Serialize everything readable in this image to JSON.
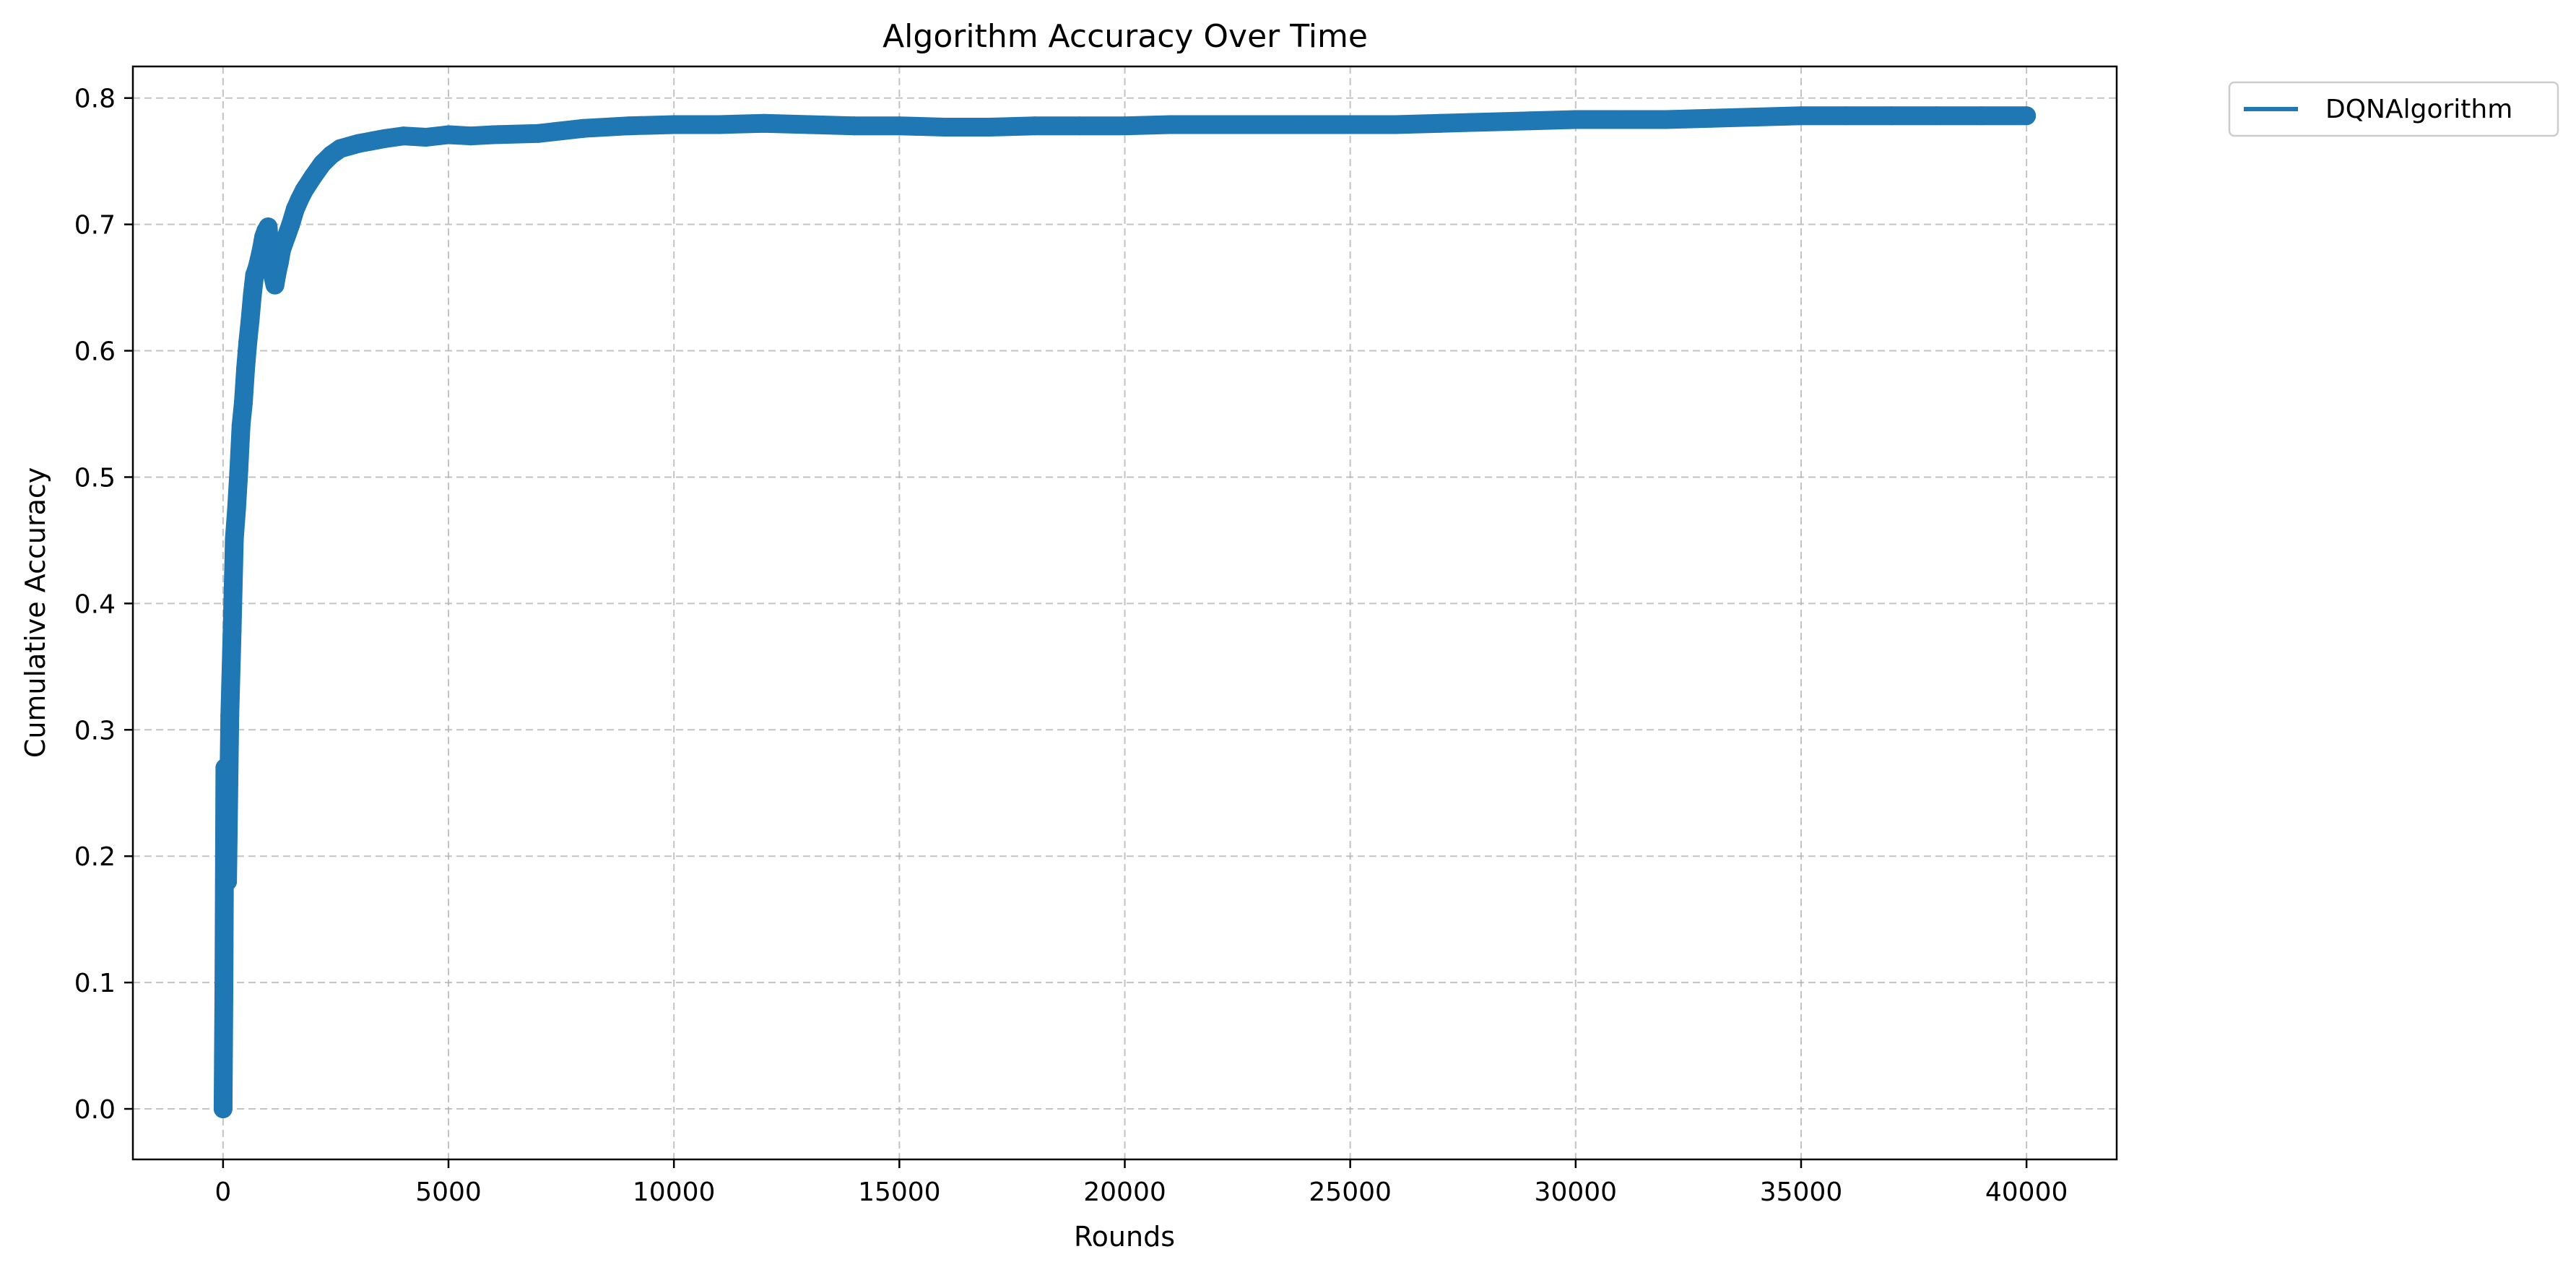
{
  "chart_data": {
    "type": "line",
    "title": "Algorithm Accuracy Over Time",
    "xlabel": "Rounds",
    "ylabel": "Cumulative Accuracy",
    "xlim": [
      -2000,
      42000
    ],
    "ylim": [
      -0.04,
      0.825
    ],
    "xticks": [
      0,
      5000,
      10000,
      15000,
      20000,
      25000,
      30000,
      35000,
      40000
    ],
    "yticks": [
      0.0,
      0.1,
      0.2,
      0.3,
      0.4,
      0.5,
      0.6,
      0.7,
      0.8
    ],
    "xtick_labels": [
      "0",
      "5000",
      "10000",
      "15000",
      "20000",
      "25000",
      "30000",
      "35000",
      "40000"
    ],
    "ytick_labels": [
      "0.0",
      "0.1",
      "0.2",
      "0.3",
      "0.4",
      "0.5",
      "0.6",
      "0.7",
      "0.8"
    ],
    "grid": true,
    "legend_position": "outside-top-right",
    "series": [
      {
        "name": "DQNAlgorithm",
        "color": "#1f77b4",
        "marker": "circle",
        "x": [
          0,
          20,
          40,
          60,
          80,
          100,
          150,
          200,
          250,
          300,
          350,
          400,
          450,
          500,
          550,
          600,
          650,
          700,
          750,
          800,
          850,
          900,
          950,
          1000,
          1050,
          1100,
          1150,
          1200,
          1250,
          1300,
          1400,
          1500,
          1600,
          1700,
          1800,
          2000,
          2200,
          2400,
          2600,
          2800,
          3000,
          3300,
          3600,
          4000,
          4500,
          5000,
          5500,
          6000,
          7000,
          8000,
          9000,
          10000,
          11000,
          12000,
          13000,
          14000,
          15000,
          16000,
          17000,
          18000,
          19000,
          20000,
          21000,
          22000,
          23000,
          24000,
          25000,
          26000,
          27000,
          28000,
          29000,
          30000,
          31000,
          32000,
          33000,
          34000,
          35000,
          36000,
          37000,
          38000,
          39000,
          40000
        ],
        "y": [
          0.0,
          0.098,
          0.27,
          0.19,
          0.23,
          0.18,
          0.311,
          0.378,
          0.451,
          0.475,
          0.505,
          0.541,
          0.559,
          0.586,
          0.607,
          0.624,
          0.644,
          0.66,
          0.665,
          0.672,
          0.68,
          0.69,
          0.695,
          0.698,
          0.675,
          0.66,
          0.652,
          0.662,
          0.67,
          0.68,
          0.69,
          0.7,
          0.712,
          0.72,
          0.727,
          0.738,
          0.748,
          0.755,
          0.76,
          0.762,
          0.764,
          0.766,
          0.768,
          0.77,
          0.769,
          0.771,
          0.77,
          0.771,
          0.772,
          0.776,
          0.778,
          0.779,
          0.779,
          0.78,
          0.779,
          0.778,
          0.778,
          0.777,
          0.777,
          0.778,
          0.778,
          0.778,
          0.779,
          0.779,
          0.779,
          0.779,
          0.779,
          0.779,
          0.78,
          0.781,
          0.782,
          0.783,
          0.783,
          0.783,
          0.784,
          0.785,
          0.786,
          0.786,
          0.786,
          0.786,
          0.786,
          0.786
        ]
      }
    ]
  }
}
